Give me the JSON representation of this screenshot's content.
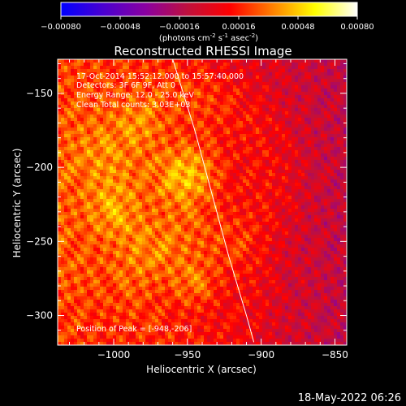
{
  "colorbar": {
    "ticks": [
      "-0.00080",
      "-0.00048",
      "-0.00016",
      "0.00016",
      "0.00048",
      "0.00080"
    ],
    "unit_parts": [
      "(photons cm",
      "-2",
      " s",
      "-1",
      " asec",
      "-2",
      ")"
    ]
  },
  "plot": {
    "title": "Reconstructed RHESSI Image",
    "annotations": [
      "17-Oct-2014 15:52:12.000 to 15:57:40.000",
      "Detectors: 3F 6F 9F, Att 0",
      "Energy Range: 12.0 - 25.0 keV",
      "Clean     Total counts: 3.03E+03"
    ],
    "peak_label": "Position of Peak = [-948,-206]"
  },
  "footer": {
    "date": "18-May-2022 06:26"
  },
  "chart_data": {
    "type": "heatmap",
    "title": "Reconstructed RHESSI Image",
    "xlabel": "Heliocentric X (arcsec)",
    "ylabel": "Heliocentric Y (arcsec)",
    "xlim": [
      -1038,
      -842
    ],
    "ylim": [
      -320,
      -127
    ],
    "x_ticks": [
      -1000,
      -950,
      -900,
      -850
    ],
    "x_tick_labels": [
      "−1000",
      "−950",
      "−900",
      "−850"
    ],
    "y_ticks": [
      -150,
      -200,
      -250,
      -300
    ],
    "y_tick_labels": [
      "−150",
      "−200",
      "−250",
      "−300"
    ],
    "colorbar_range": [
      -0.0008,
      0.0008
    ],
    "colormap": [
      "#0000ff",
      "#4a00d0",
      "#8a00a0",
      "#c0103c",
      "#ff0000",
      "#ff8000",
      "#ffff00",
      "#ffffff"
    ],
    "peak": [
      -948,
      -206
    ],
    "limb_curve": [
      [
        -960,
        -127
      ],
      [
        -945,
        -175
      ],
      [
        -935,
        -212
      ],
      [
        -922,
        -260
      ],
      [
        -910,
        -300
      ],
      [
        -905,
        -318
      ]
    ]
  }
}
